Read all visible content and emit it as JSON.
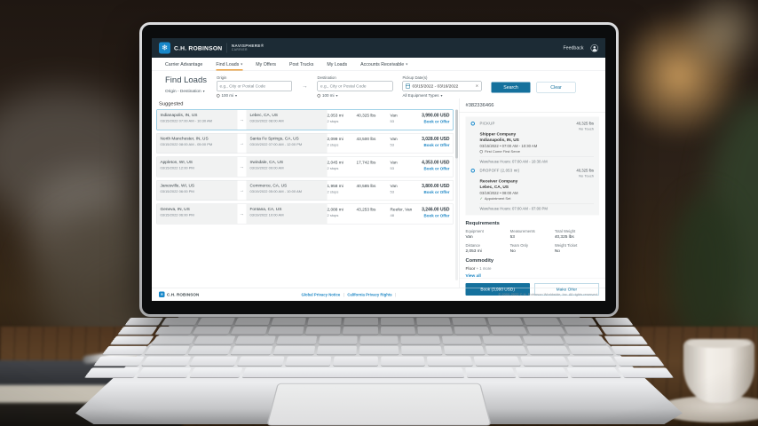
{
  "header": {
    "brand": "C.H. ROBINSON",
    "product": "NAVISPHERE®",
    "product_sub": "CARRIER",
    "feedback": "Feedback"
  },
  "nav": {
    "items": [
      {
        "label": "Carrier Advantage"
      },
      {
        "label": "Find Loads"
      },
      {
        "label": "My Offers"
      },
      {
        "label": "Post Trucks"
      },
      {
        "label": "My Loads"
      },
      {
        "label": "Accounts Receivable"
      }
    ]
  },
  "filters": {
    "title": "Find Loads",
    "mode": "Origin - Destination",
    "origin_label": "Origin",
    "origin_placeholder": "e.g., City or Postal Code",
    "origin_radius": "100 mi",
    "destination_label": "Destination",
    "destination_placeholder": "e.g., City or Postal Code",
    "destination_radius": "100 mi",
    "date_label": "Pickup Date(s)",
    "date_value": "03/15/2022 - 03/16/2022",
    "equipment": "All Equipment Types",
    "search": "Search",
    "clear": "Clear"
  },
  "list": {
    "tab": "Suggested",
    "rows": [
      {
        "origin_city": "Indianapolis, IN, US",
        "origin_time": "03/15/2022 07:00 AM - 10:30 AM",
        "dest_city": "Lebec, CA, US",
        "dest_time": "03/19/2022 08:00 AM",
        "miles": "2,053 mi",
        "stops": "2 stops",
        "weight": "40,325 lbs",
        "equipment": "Van",
        "length": "53",
        "price": "3,990.00 USD",
        "action": "Book or Offer",
        "selected": true
      },
      {
        "origin_city": "North Manchester, IN, US",
        "origin_time": "03/15/2022 08:00 AM - 05:00 PM",
        "dest_city": "Santa Fe Springs, CA, US",
        "dest_time": "03/19/2022 07:00 AM - 12:00 PM",
        "miles": "2,099 mi",
        "stops": "2 stops",
        "weight": "43,500 lbs",
        "equipment": "Van",
        "length": "53",
        "price": "3,028.00 USD",
        "action": "Book or Offer",
        "selected": false
      },
      {
        "origin_city": "Appleton, WI, US",
        "origin_time": "03/15/2022 12:00 PM",
        "dest_city": "Irwindale, CA, US",
        "dest_time": "03/19/2022 09:00 AM",
        "miles": "2,045 mi",
        "stops": "2 stops",
        "weight": "17,742 lbs",
        "equipment": "Van",
        "length": "53",
        "price": "4,353.00 USD",
        "action": "Book or Offer",
        "selected": false
      },
      {
        "origin_city": "Janesville, WI, US",
        "origin_time": "03/15/2022 06:00 PM",
        "dest_city": "Commerce, CA, US",
        "dest_time": "03/19/2022 05:00 AM - 10:00 AM",
        "miles": "1,958 mi",
        "stops": "2 stops",
        "weight": "40,585 lbs",
        "equipment": "Van",
        "length": "53",
        "price": "3,800.00 USD",
        "action": "Book or Offer",
        "selected": false
      },
      {
        "origin_city": "Geneva, IN, US",
        "origin_time": "03/15/2022 06:00 PM",
        "dest_city": "Fontana, CA, US",
        "dest_time": "03/19/2022 10:00 AM",
        "miles": "2,088 mi",
        "stops": "2 stops",
        "weight": "43,253 lbs",
        "equipment": "Reefer, Van",
        "length": "48",
        "price": "3,246.00 USD",
        "action": "Book or Offer",
        "selected": false
      }
    ]
  },
  "panel": {
    "load_number": "#382336466",
    "pickup": {
      "label": "PICKUP",
      "company": "Shipper Company",
      "city": "Indianapolis, IN, US",
      "datetime": "03/15/2022 • 07:00 AM - 10:30 AM",
      "tag": "First Come First Serve",
      "weight": "40,325 lbs",
      "touch": "No Touch",
      "warehouse": "Warehouse Hours: 07:00 AM - 10:30 AM"
    },
    "dropoff": {
      "label": "DROPOFF (2,053 mi)",
      "company": "Receiver Company",
      "city": "Lebec, CA, US",
      "datetime": "03/19/2022 • 08:00 AM",
      "tag": "Appointment Set",
      "weight": "40,325 lbs",
      "touch": "No Touch",
      "warehouse": "Warehouse Hours: 07:00 AM - 07:00 PM"
    },
    "requirements": {
      "title": "Requirements",
      "items": [
        {
          "label": "Equipment",
          "value": "Van"
        },
        {
          "label": "Measurements",
          "value": "53"
        },
        {
          "label": "Total Weight",
          "value": "40,325 lbs"
        },
        {
          "label": "Distance",
          "value": "2,053 mi"
        },
        {
          "label": "Team Only",
          "value": "No"
        },
        {
          "label": "Weight Ticket",
          "value": "No"
        }
      ]
    },
    "commodity": {
      "title": "Commodity",
      "primary": "Floor",
      "more": "+ 1 more",
      "view_all": "View all"
    },
    "book": "Book (3,990 USD)",
    "make_offer": "Make Offer"
  },
  "footer": {
    "brand": "C.H. ROBINSON",
    "links": [
      "Global Privacy Notice",
      "California Privacy Rights"
    ],
    "copyright": "© 2000-2022 C.H. Robinson Worldwide, Inc. All rights reserved."
  },
  "colors": {
    "header_bg": "#1c2b35",
    "brand_blue": "#1787c9",
    "primary_button": "#15719d",
    "link_blue": "#1e87c5",
    "active_tab_orange": "#f0a23c"
  }
}
